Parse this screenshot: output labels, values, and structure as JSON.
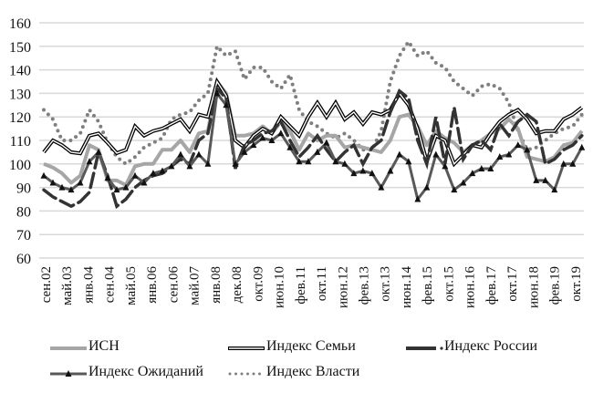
{
  "chart_data": {
    "type": "line",
    "title": "",
    "xlabel": "",
    "ylabel": "",
    "ylim": [
      60,
      160
    ],
    "y_ticks": [
      60,
      70,
      80,
      90,
      100,
      110,
      120,
      130,
      140,
      150,
      160
    ],
    "grid": "horizontal",
    "legend_position": "bottom",
    "x_start_year": 2002.608,
    "x_step_years": 0.294,
    "x_ticks": {
      "first_year": 2002.667,
      "last_year": 2019.75,
      "labels": [
        "сен.02",
        "май.03",
        "янв.04",
        "сен.04",
        "май.05",
        "янв.06",
        "сен.06",
        "май.07",
        "янв.08",
        "дек.08",
        "окт.09",
        "июн.10",
        "фев.11",
        "окт.11",
        "июн.12",
        "фев.13",
        "окт.13",
        "июн.14",
        "фев.15",
        "окт.15",
        "июн.16",
        "фев.17",
        "окт.17",
        "июн.18",
        "фев.19",
        "окт.19"
      ]
    },
    "series": [
      {
        "name": "ИСН",
        "style": "solid-light",
        "color": "#a6a6a6",
        "values": [
          100,
          98.5,
          96,
          92,
          95,
          108,
          106,
          93,
          93,
          91,
          99,
          100,
          100,
          106,
          106,
          110,
          105,
          113,
          114,
          135,
          130,
          112,
          112,
          113,
          116,
          113,
          118,
          114,
          106,
          113,
          110,
          112,
          112,
          107,
          108,
          107,
          106,
          105,
          110,
          120,
          121,
          116,
          108,
          114,
          111,
          109,
          105,
          108,
          110,
          113,
          115,
          119,
          115,
          103,
          102,
          101,
          103,
          108,
          109,
          114
        ]
      },
      {
        "name": "Индекс Семьи",
        "style": "double",
        "color": "#000000",
        "values": [
          105,
          110,
          108,
          105,
          104.5,
          112,
          113,
          109,
          104.6,
          106,
          116,
          112,
          114,
          115,
          117,
          119,
          114,
          121,
          120,
          135,
          129,
          110,
          107,
          112,
          115,
          113,
          120,
          116,
          112,
          120,
          126,
          120,
          126,
          119,
          122,
          117,
          122,
          121,
          123,
          130,
          125,
          115,
          101,
          112,
          110,
          100,
          104,
          108,
          107,
          113,
          118,
          121,
          123,
          119,
          113,
          114,
          114,
          119,
          121,
          124
        ]
      },
      {
        "name": "Индекс России",
        "style": "dashed",
        "color": "#333333",
        "values": [
          89,
          86,
          84,
          82,
          84,
          88,
          105,
          95,
          82,
          85,
          90,
          93,
          95,
          96,
          99,
          102,
          100,
          110,
          113,
          132,
          128,
          98,
          108,
          110,
          113,
          114,
          118,
          110,
          103,
          107,
          112,
          106,
          101,
          105,
          108,
          100,
          107,
          110,
          122,
          131,
          128,
          110,
          100,
          120,
          100,
          124,
          102,
          108,
          110,
          106,
          117,
          112,
          118,
          121,
          118,
          100,
          102,
          106,
          108,
          112
        ]
      },
      {
        "name": "Индекс Ожиданий",
        "style": "triangles",
        "color": "#595959",
        "values": [
          95,
          92,
          90,
          89,
          92,
          101,
          105,
          94,
          89,
          90,
          95,
          92,
          96,
          97,
          99,
          104,
          99,
          104,
          100,
          130,
          125,
          100,
          105,
          108,
          111,
          110,
          113,
          107,
          101,
          101,
          105,
          109,
          101,
          100,
          96,
          97,
          96,
          90,
          97,
          104,
          101,
          85,
          90,
          104,
          99,
          89,
          92,
          96,
          98,
          98,
          103,
          104,
          108,
          106,
          93,
          93,
          89,
          100,
          100,
          107
        ]
      },
      {
        "name": "Индекс Власти",
        "style": "dotted",
        "color": "#7f7f7f",
        "values": [
          123,
          119,
          110,
          110,
          113,
          123,
          118,
          109,
          103,
          100,
          103,
          107,
          109,
          111,
          119,
          121,
          122,
          127,
          130,
          150,
          146,
          148,
          136,
          141,
          141,
          135,
          132,
          138,
          123,
          118,
          116,
          113,
          111,
          113,
          110,
          106,
          106,
          114,
          135,
          146,
          152,
          146,
          148,
          143,
          141,
          135,
          132,
          129,
          133,
          134,
          132,
          126,
          114,
          106,
          107,
          110,
          113,
          115,
          116,
          121
        ]
      }
    ]
  }
}
